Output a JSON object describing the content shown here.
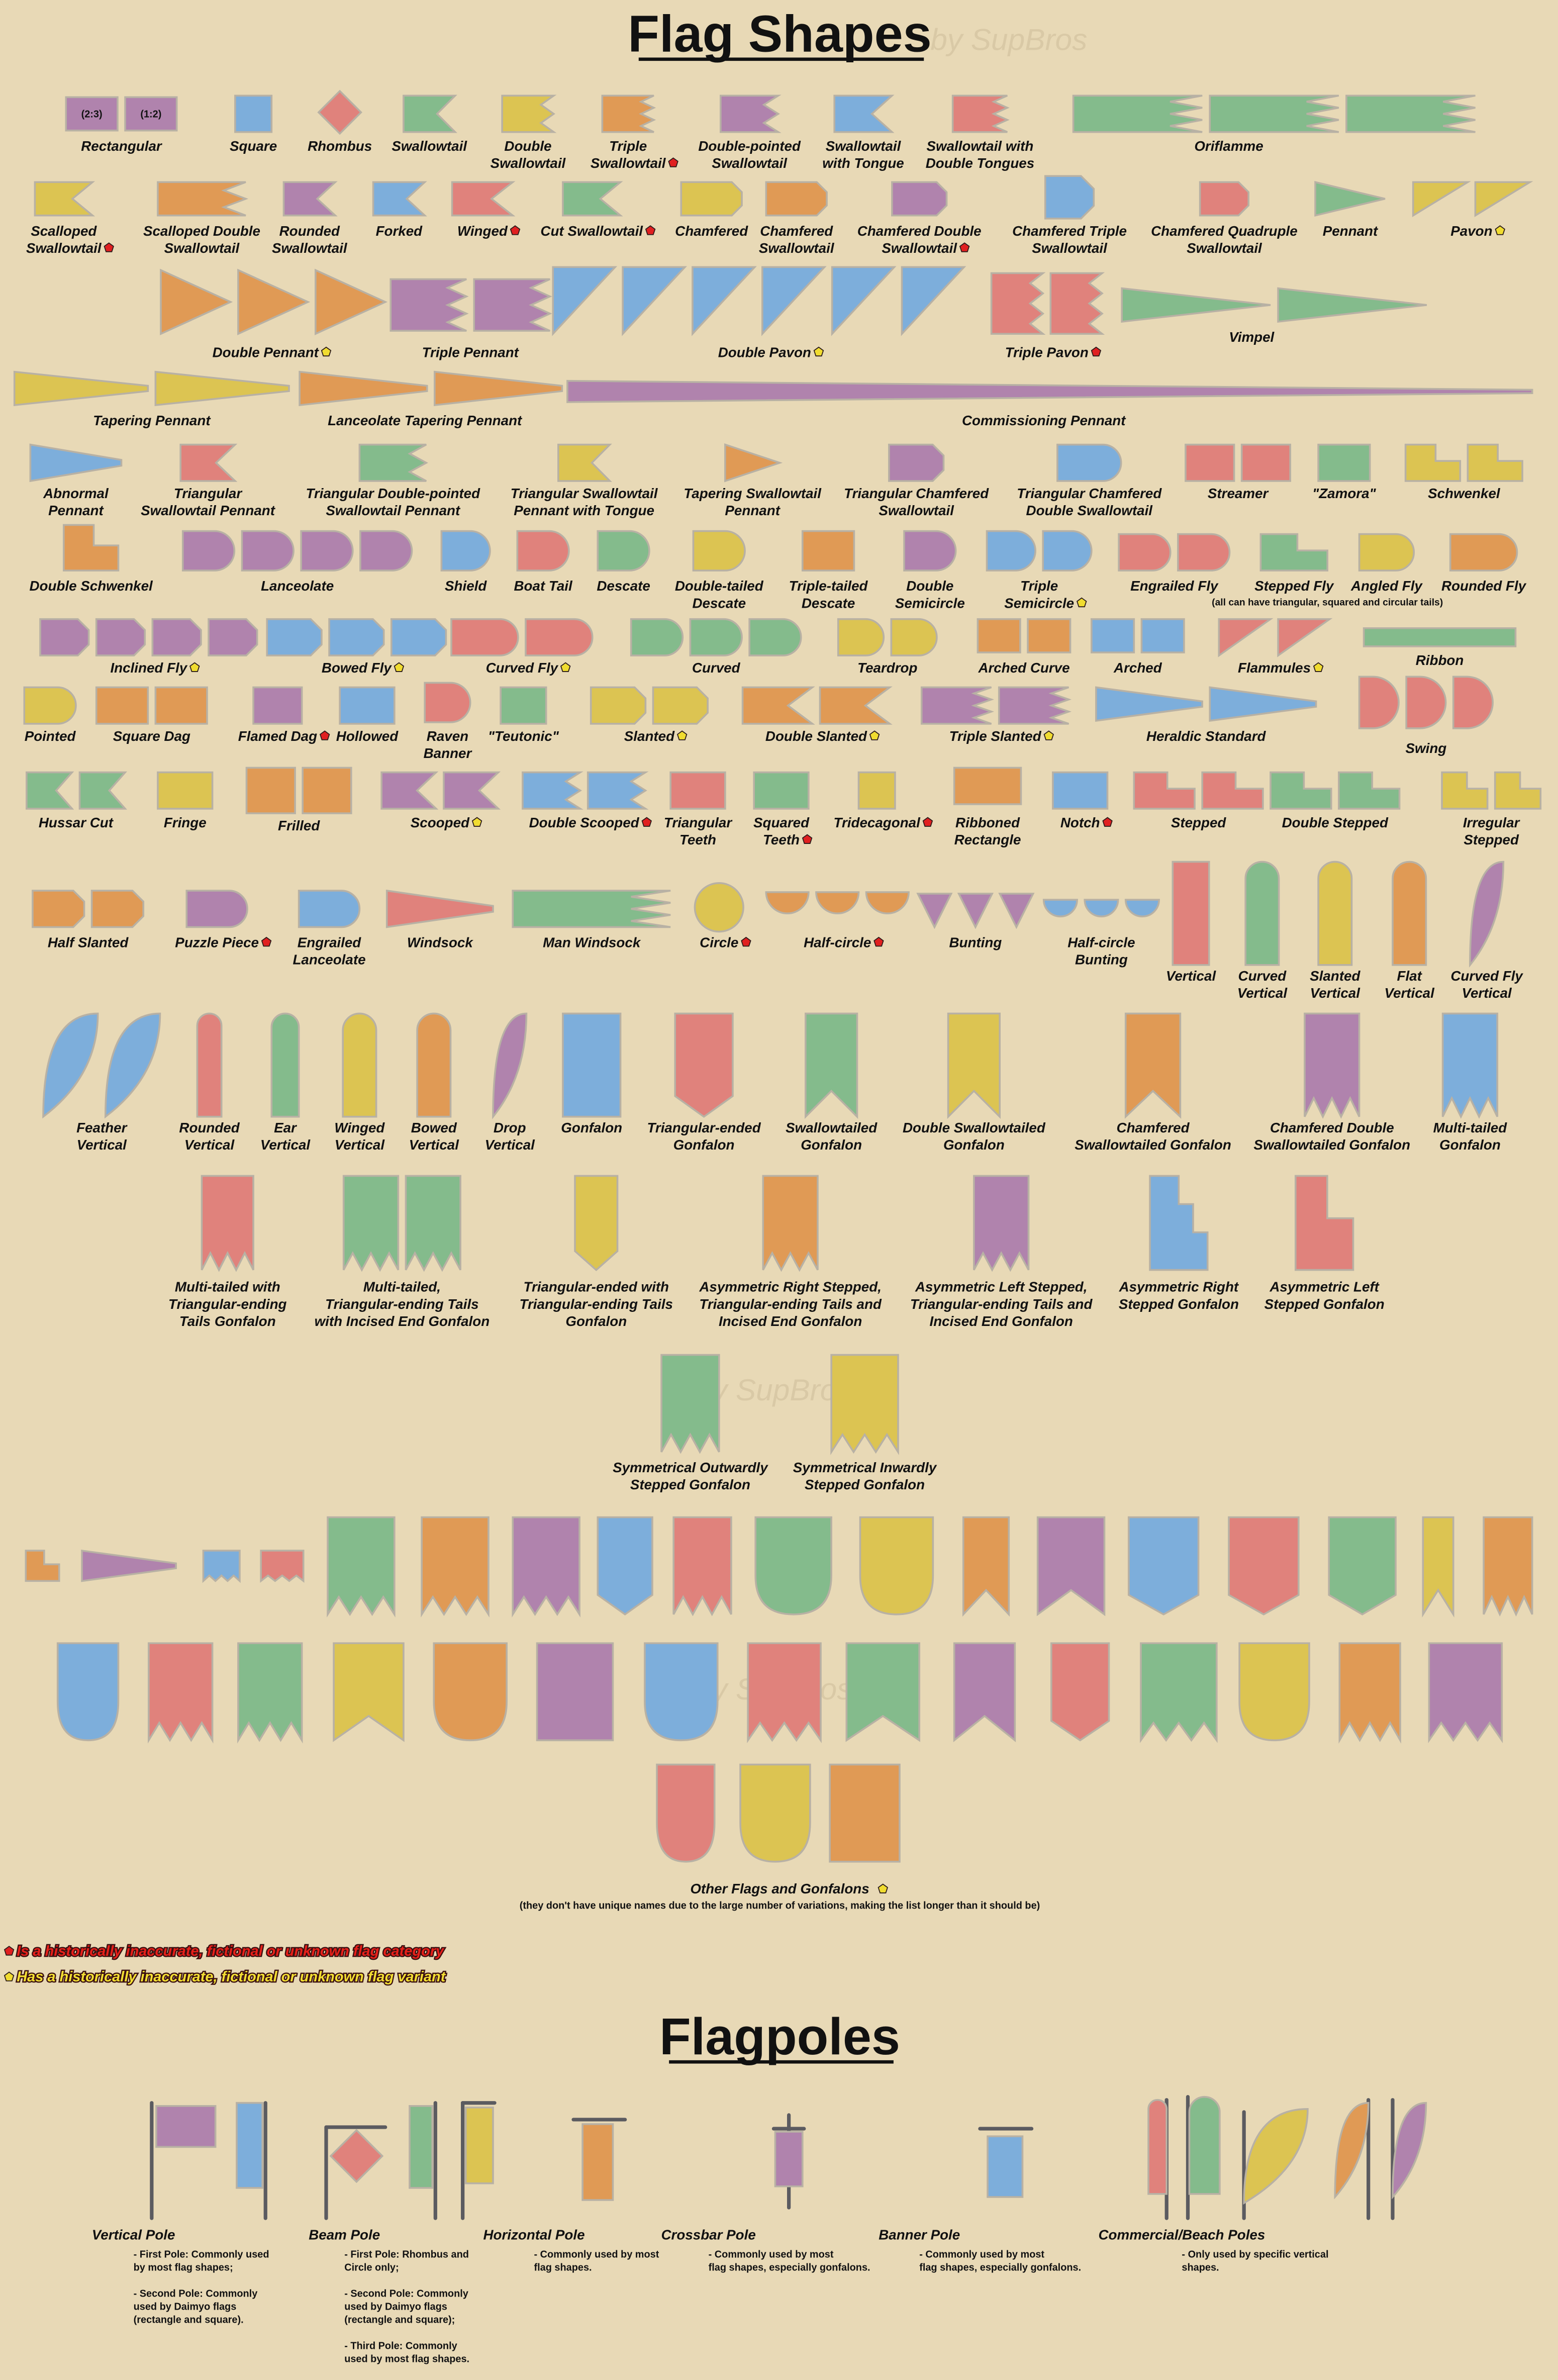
{
  "title": "Flag Shapes",
  "watermark": "by SupBros",
  "flags": [
    {
      "label": [
        "Rectangular"
      ],
      "ratios": [
        "(2:3)",
        "(1:2)"
      ]
    },
    {
      "label": [
        "Square"
      ]
    },
    {
      "label": [
        "Rhombus"
      ]
    },
    {
      "label": [
        "Swallowtail"
      ]
    },
    {
      "label": [
        "Double",
        "Swallowtail"
      ]
    },
    {
      "label": [
        "Triple",
        "Swallowtail"
      ]
    },
    {
      "label": [
        "Double-pointed",
        "Swallowtail"
      ]
    },
    {
      "label": [
        "Swallowtail",
        "with Tongue"
      ]
    },
    {
      "label": [
        "Swallowtail with",
        "Double Tongues"
      ]
    },
    {
      "label": [
        "Oriflamme"
      ]
    },
    {
      "label": [
        "Scalloped",
        "Swallowtail"
      ]
    },
    {
      "label": [
        "Scalloped Double",
        "Swallowtail"
      ]
    },
    {
      "label": [
        "Rounded",
        "Swallowtail"
      ]
    },
    {
      "label": [
        "Forked"
      ]
    },
    {
      "label": [
        "Winged"
      ]
    },
    {
      "label": [
        "Cut Swallowtail"
      ]
    },
    {
      "label": [
        "Chamfered"
      ]
    },
    {
      "label": [
        "Chamfered",
        "Swallowtail"
      ]
    },
    {
      "label": [
        "Chamfered Double",
        "Swallowtail"
      ]
    },
    {
      "label": [
        "Chamfered Triple",
        "Swallowtail"
      ]
    },
    {
      "label": [
        "Chamfered Quadruple",
        "Swallowtail"
      ]
    },
    {
      "label": [
        "Pennant"
      ]
    },
    {
      "label": [
        "Pavon"
      ]
    },
    {
      "label": [
        "Double Pennant"
      ]
    },
    {
      "label": [
        "Triple Pennant"
      ]
    },
    {
      "label": [
        "Double Pavon"
      ]
    },
    {
      "label": [
        "Triple Pavon"
      ]
    },
    {
      "label": [
        "Vimpel"
      ]
    },
    {
      "label": [
        "Tapering Pennant"
      ]
    },
    {
      "label": [
        "Lanceolate Tapering Pennant"
      ]
    },
    {
      "label": [
        "Commissioning Pennant"
      ]
    },
    {
      "label": [
        "Abnormal",
        "Pennant"
      ]
    },
    {
      "label": [
        "Triangular",
        "Swallowtail Pennant"
      ]
    },
    {
      "label": [
        "Triangular Double-pointed",
        "Swallowtail Pennant"
      ]
    },
    {
      "label": [
        "Triangular Swallowtail",
        "Pennant with Tongue"
      ]
    },
    {
      "label": [
        "Tapering Swallowtail",
        "Pennant"
      ]
    },
    {
      "label": [
        "Triangular Chamfered",
        "Swallowtail"
      ]
    },
    {
      "label": [
        "Triangular Chamfered",
        "Double Swallowtail"
      ]
    },
    {
      "label": [
        "Streamer"
      ]
    },
    {
      "label": [
        "\"Zamora\""
      ]
    },
    {
      "label": [
        "Schwenkel"
      ]
    },
    {
      "label": [
        "Double Schwenkel"
      ]
    },
    {
      "label": [
        "Lanceolate"
      ]
    },
    {
      "label": [
        "Shield"
      ]
    },
    {
      "label": [
        "Boat Tail"
      ]
    },
    {
      "label": [
        "Descate"
      ]
    },
    {
      "label": [
        "Double-tailed",
        "Descate"
      ]
    },
    {
      "label": [
        "Triple-tailed",
        "Descate"
      ]
    },
    {
      "label": [
        "Double",
        "Semicircle"
      ]
    },
    {
      "label": [
        "Triple",
        "Semicircle"
      ]
    },
    {
      "label": [
        "Engrailed Fly"
      ]
    },
    {
      "label": [
        "Stepped Fly"
      ]
    },
    {
      "label": [
        "Angled Fly"
      ]
    },
    {
      "label": [
        "Rounded Fly"
      ]
    },
    {
      "label": [
        "Inclined Fly"
      ]
    },
    {
      "label": [
        "Bowed Fly"
      ]
    },
    {
      "label": [
        "Curved Fly"
      ]
    },
    {
      "label": [
        "Curved"
      ]
    },
    {
      "label": [
        "Teardrop"
      ]
    },
    {
      "label": [
        "Arched Curve"
      ]
    },
    {
      "label": [
        "Arched"
      ]
    },
    {
      "label": [
        "Flammules"
      ]
    },
    {
      "label": [
        "Ribbon"
      ]
    },
    {
      "label": [
        "Pointed"
      ]
    },
    {
      "label": [
        "Square Dag"
      ]
    },
    {
      "label": [
        "Flamed Dag"
      ]
    },
    {
      "label": [
        "Hollowed"
      ]
    },
    {
      "label": [
        "Raven",
        "Banner"
      ]
    },
    {
      "label": [
        "\"Teutonic\""
      ]
    },
    {
      "label": [
        "Slanted"
      ]
    },
    {
      "label": [
        "Double Slanted"
      ]
    },
    {
      "label": [
        "Triple Slanted"
      ]
    },
    {
      "label": [
        "Heraldic Standard"
      ]
    },
    {
      "label": [
        "Swing"
      ]
    },
    {
      "label": [
        "Hussar Cut"
      ]
    },
    {
      "label": [
        "Fringe"
      ]
    },
    {
      "label": [
        "Frilled"
      ]
    },
    {
      "label": [
        "Scooped"
      ]
    },
    {
      "label": [
        "Double Scooped"
      ]
    },
    {
      "label": [
        "Triangular",
        "Teeth"
      ]
    },
    {
      "label": [
        "Squared",
        "Teeth"
      ]
    },
    {
      "label": [
        "Tridecagonal"
      ]
    },
    {
      "label": [
        "Ribboned",
        "Rectangle"
      ]
    },
    {
      "label": [
        "Notch"
      ]
    },
    {
      "label": [
        "Stepped"
      ]
    },
    {
      "label": [
        "Double Stepped"
      ]
    },
    {
      "label": [
        "Irregular",
        "Stepped"
      ]
    },
    {
      "label": [
        "Half Slanted"
      ]
    },
    {
      "label": [
        "Puzzle Piece"
      ]
    },
    {
      "label": [
        "Engrailed",
        "Lanceolate"
      ]
    },
    {
      "label": [
        "Windsock"
      ]
    },
    {
      "label": [
        "Man Windsock"
      ]
    },
    {
      "label": [
        "Circle"
      ]
    },
    {
      "label": [
        "Half-circle"
      ]
    },
    {
      "label": [
        "Bunting"
      ]
    },
    {
      "label": [
        "Half-circle",
        "Bunting"
      ]
    },
    {
      "label": [
        "Vertical"
      ]
    },
    {
      "label": [
        "Curved",
        "Vertical"
      ]
    },
    {
      "label": [
        "Slanted",
        "Vertical"
      ]
    },
    {
      "label": [
        "Flat",
        "Vertical"
      ]
    },
    {
      "label": [
        "Curved Fly",
        "Vertical"
      ]
    },
    {
      "label": [
        "Feather",
        "Vertical"
      ]
    },
    {
      "label": [
        "Rounded",
        "Vertical"
      ]
    },
    {
      "label": [
        "Ear",
        "Vertical"
      ]
    },
    {
      "label": [
        "Winged",
        "Vertical"
      ]
    },
    {
      "label": [
        "Bowed",
        "Vertical"
      ]
    },
    {
      "label": [
        "Drop",
        "Vertical"
      ]
    },
    {
      "label": [
        "Gonfalon"
      ]
    },
    {
      "label": [
        "Triangular-ended",
        "Gonfalon"
      ]
    },
    {
      "label": [
        "Swallowtailed",
        "Gonfalon"
      ]
    },
    {
      "label": [
        "Double Swallowtailed",
        "Gonfalon"
      ]
    },
    {
      "label": [
        "Chamfered",
        "Swallowtailed Gonfalon"
      ]
    },
    {
      "label": [
        "Chamfered Double",
        "Swallowtailed Gonfalon"
      ]
    },
    {
      "label": [
        "Multi-tailed",
        "Gonfalon"
      ]
    },
    {
      "label": [
        "Multi-tailed with",
        "Triangular-ending",
        "Tails Gonfalon"
      ]
    },
    {
      "label": [
        "Multi-tailed,",
        "Triangular-ending Tails",
        "with Incised End Gonfalon"
      ]
    },
    {
      "label": [
        "Triangular-ended with",
        "Triangular-ending Tails",
        "Gonfalon"
      ]
    },
    {
      "label": [
        "Asymmetric Right Stepped,",
        "Triangular-ending Tails and",
        "Incised End Gonfalon"
      ]
    },
    {
      "label": [
        "Asymmetric Left Stepped,",
        "Triangular-ending Tails and",
        "Incised End Gonfalon"
      ]
    },
    {
      "label": [
        "Asymmetric Right",
        "Stepped Gonfalon"
      ]
    },
    {
      "label": [
        "Asymmetric Left",
        "Stepped Gonfalon"
      ]
    },
    {
      "label": [
        "Symmetrical Outwardly",
        "Stepped Gonfalon"
      ]
    },
    {
      "label": [
        "Symmetrical Inwardly",
        "Stepped Gonfalon"
      ]
    }
  ],
  "fly_note": "(all can have triangular, squared and circular tails)",
  "other": {
    "label": "Other Flags and Gonfalons",
    "note": "(they don't have unique names due to the large number of variations, making the list longer than it should be)"
  },
  "legend": {
    "category": "Is a historically inaccurate, fictional or unknown flag category",
    "variant": "Has a historically inaccurate, fictional or unknown flag variant"
  },
  "poles_title": "Flagpoles",
  "poles": [
    {
      "name": "Vertical Pole",
      "description": [
        [
          "- First Pole: Commonly used",
          "by most flag shapes;"
        ],
        [
          "- Second Pole: Commonly",
          "used by Daimyo flags",
          "(rectangle and square)."
        ]
      ]
    },
    {
      "name": "Beam Pole",
      "description": [
        [
          "- First Pole: Rhombus and",
          "Circle only;"
        ],
        [
          "- Second Pole: Commonly",
          "used by Daimyo flags",
          "(rectangle and square);"
        ],
        [
          "- Third Pole: Commonly",
          "used by most flag shapes."
        ]
      ]
    },
    {
      "name": "Horizontal Pole",
      "description": [
        [
          "- Commonly used by most",
          "flag shapes."
        ]
      ]
    },
    {
      "name": "Crossbar Pole",
      "description": [
        [
          "- Commonly used by most",
          "flag shapes, especially gonfalons."
        ]
      ]
    },
    {
      "name": "Banner Pole",
      "description": [
        [
          "- Commonly used by most",
          "flag shapes, especially gonfalons."
        ]
      ]
    },
    {
      "name": "Commercial/Beach Poles",
      "description": [
        [
          "- Only used by specific vertical",
          "shapes."
        ]
      ]
    }
  ]
}
